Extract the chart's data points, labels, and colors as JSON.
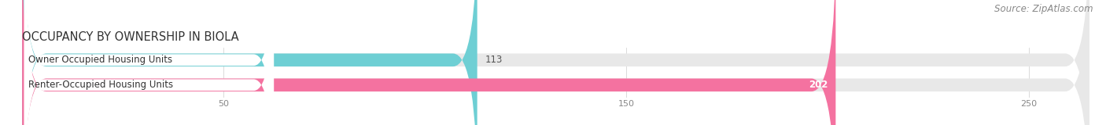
{
  "title": "OCCUPANCY BY OWNERSHIP IN BIOLA",
  "source": "Source: ZipAtlas.com",
  "categories": [
    "Owner Occupied Housing Units",
    "Renter-Occupied Housing Units"
  ],
  "values": [
    113,
    202
  ],
  "bar_colors": [
    "#6ecfd4",
    "#f472a0"
  ],
  "value_label_inside": [
    false,
    true
  ],
  "value_label_colors": [
    "#555555",
    "#ffffff"
  ],
  "bg_bar_color": "#e8e8e8",
  "label_bg_color": "#ffffff",
  "xlim": [
    0,
    265
  ],
  "xticks": [
    50,
    150,
    250
  ],
  "title_fontsize": 10.5,
  "source_fontsize": 8.5,
  "bar_label_fontsize": 8.5,
  "value_fontsize": 8.5,
  "bar_height": 0.52,
  "fig_bg_color": "#ffffff",
  "fig_width": 14.06,
  "fig_height": 1.6,
  "dpi": 100
}
